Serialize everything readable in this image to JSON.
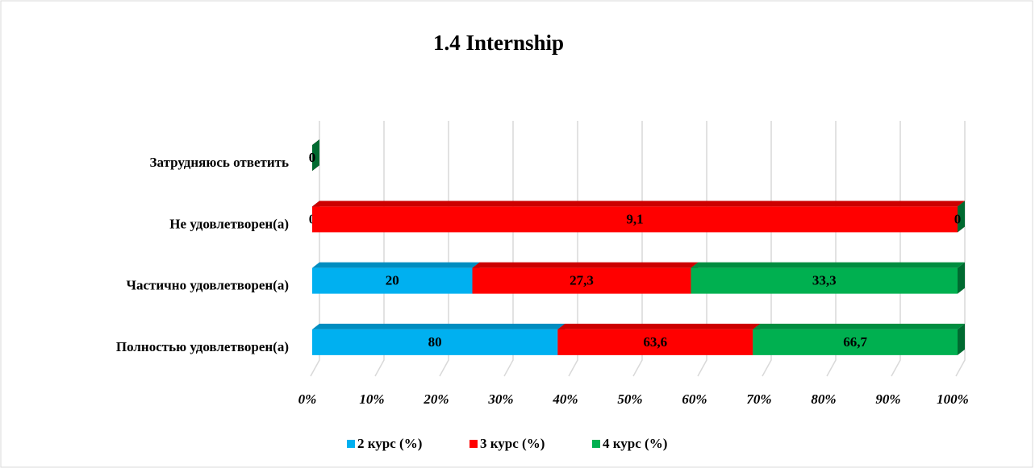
{
  "chart_data": {
    "type": "stacked_bar_100_horizontal",
    "title": "1.4 Internship",
    "categories": [
      "Затрудняюсь ответить",
      "Не удовлетворен(а)",
      "Частично удовлетворен(а)",
      "Полностью удовлетворен(а)"
    ],
    "series": [
      {
        "name": "2 курс (%)",
        "color": "#00b0f0",
        "values": [
          0,
          0,
          20,
          80
        ],
        "value_labels": [
          "0",
          "0",
          "20",
          "80"
        ]
      },
      {
        "name": "3 курс (%)",
        "color": "#ff0000",
        "values": [
          0,
          9.1,
          27.3,
          63.6
        ],
        "value_labels": [
          "0",
          "9,1",
          "27,3",
          "63,6"
        ]
      },
      {
        "name": "4 курс (%)",
        "color": "#00b050",
        "values": [
          0,
          0,
          33.3,
          66.7
        ],
        "value_labels": [
          "0",
          "0",
          "33,3",
          "66,7"
        ]
      }
    ],
    "xlim": [
      0,
      100
    ],
    "xticks": [
      {
        "value": 0,
        "label": "0%"
      },
      {
        "value": 10,
        "label": "10%"
      },
      {
        "value": 20,
        "label": "20%"
      },
      {
        "value": 30,
        "label": "30%"
      },
      {
        "value": 40,
        "label": "40%"
      },
      {
        "value": 50,
        "label": "50%"
      },
      {
        "value": 60,
        "label": "60%"
      },
      {
        "value": 70,
        "label": "70%"
      },
      {
        "value": 80,
        "label": "80%"
      },
      {
        "value": 90,
        "label": "90%"
      },
      {
        "value": 100,
        "label": "100%"
      }
    ],
    "grid": true,
    "legend": "bottom"
  }
}
